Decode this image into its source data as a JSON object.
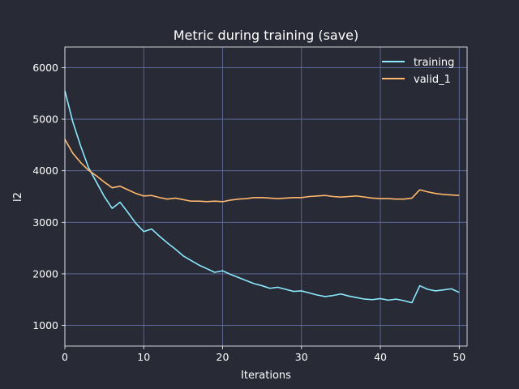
{
  "chart_data": {
    "type": "line",
    "title": "Metric during training (save)",
    "xlabel": "Iterations",
    "ylabel": "l2",
    "xlim": [
      0,
      51
    ],
    "ylim": [
      600,
      6400
    ],
    "xticks": [
      0,
      10,
      20,
      30,
      40,
      50
    ],
    "yticks": [
      1000,
      2000,
      3000,
      4000,
      5000,
      6000
    ],
    "grid": true,
    "legend_position": "top-right",
    "colors": {
      "background": "#282a36",
      "grid": "#6272a4",
      "axis": "#ffffff",
      "text": "#ffffff"
    },
    "x": [
      0,
      1,
      2,
      3,
      4,
      5,
      6,
      7,
      8,
      9,
      10,
      11,
      12,
      13,
      14,
      15,
      16,
      17,
      18,
      19,
      20,
      21,
      22,
      23,
      24,
      25,
      26,
      27,
      28,
      29,
      30,
      31,
      32,
      33,
      34,
      35,
      36,
      37,
      38,
      39,
      40,
      41,
      42,
      43,
      44,
      45,
      46,
      47,
      48,
      49,
      50
    ],
    "series": [
      {
        "name": "training",
        "color": "#8be9fd",
        "values": [
          5550,
          4950,
          4480,
          4060,
          3780,
          3500,
          3270,
          3390,
          3190,
          2980,
          2820,
          2870,
          2730,
          2600,
          2480,
          2350,
          2260,
          2170,
          2100,
          2030,
          2060,
          1990,
          1930,
          1870,
          1810,
          1770,
          1720,
          1740,
          1700,
          1660,
          1670,
          1630,
          1590,
          1560,
          1580,
          1610,
          1570,
          1540,
          1510,
          1500,
          1520,
          1490,
          1510,
          1480,
          1440,
          1770,
          1700,
          1670,
          1690,
          1710,
          1640
        ]
      },
      {
        "name": "valid_1",
        "color": "#ffb86c",
        "values": [
          4610,
          4340,
          4160,
          4010,
          3900,
          3780,
          3670,
          3700,
          3630,
          3560,
          3510,
          3520,
          3480,
          3450,
          3470,
          3440,
          3410,
          3410,
          3400,
          3410,
          3400,
          3430,
          3450,
          3460,
          3480,
          3480,
          3470,
          3460,
          3470,
          3480,
          3480,
          3500,
          3510,
          3520,
          3500,
          3490,
          3500,
          3510,
          3490,
          3470,
          3460,
          3460,
          3450,
          3450,
          3470,
          3630,
          3590,
          3560,
          3540,
          3530,
          3520
        ]
      }
    ]
  }
}
